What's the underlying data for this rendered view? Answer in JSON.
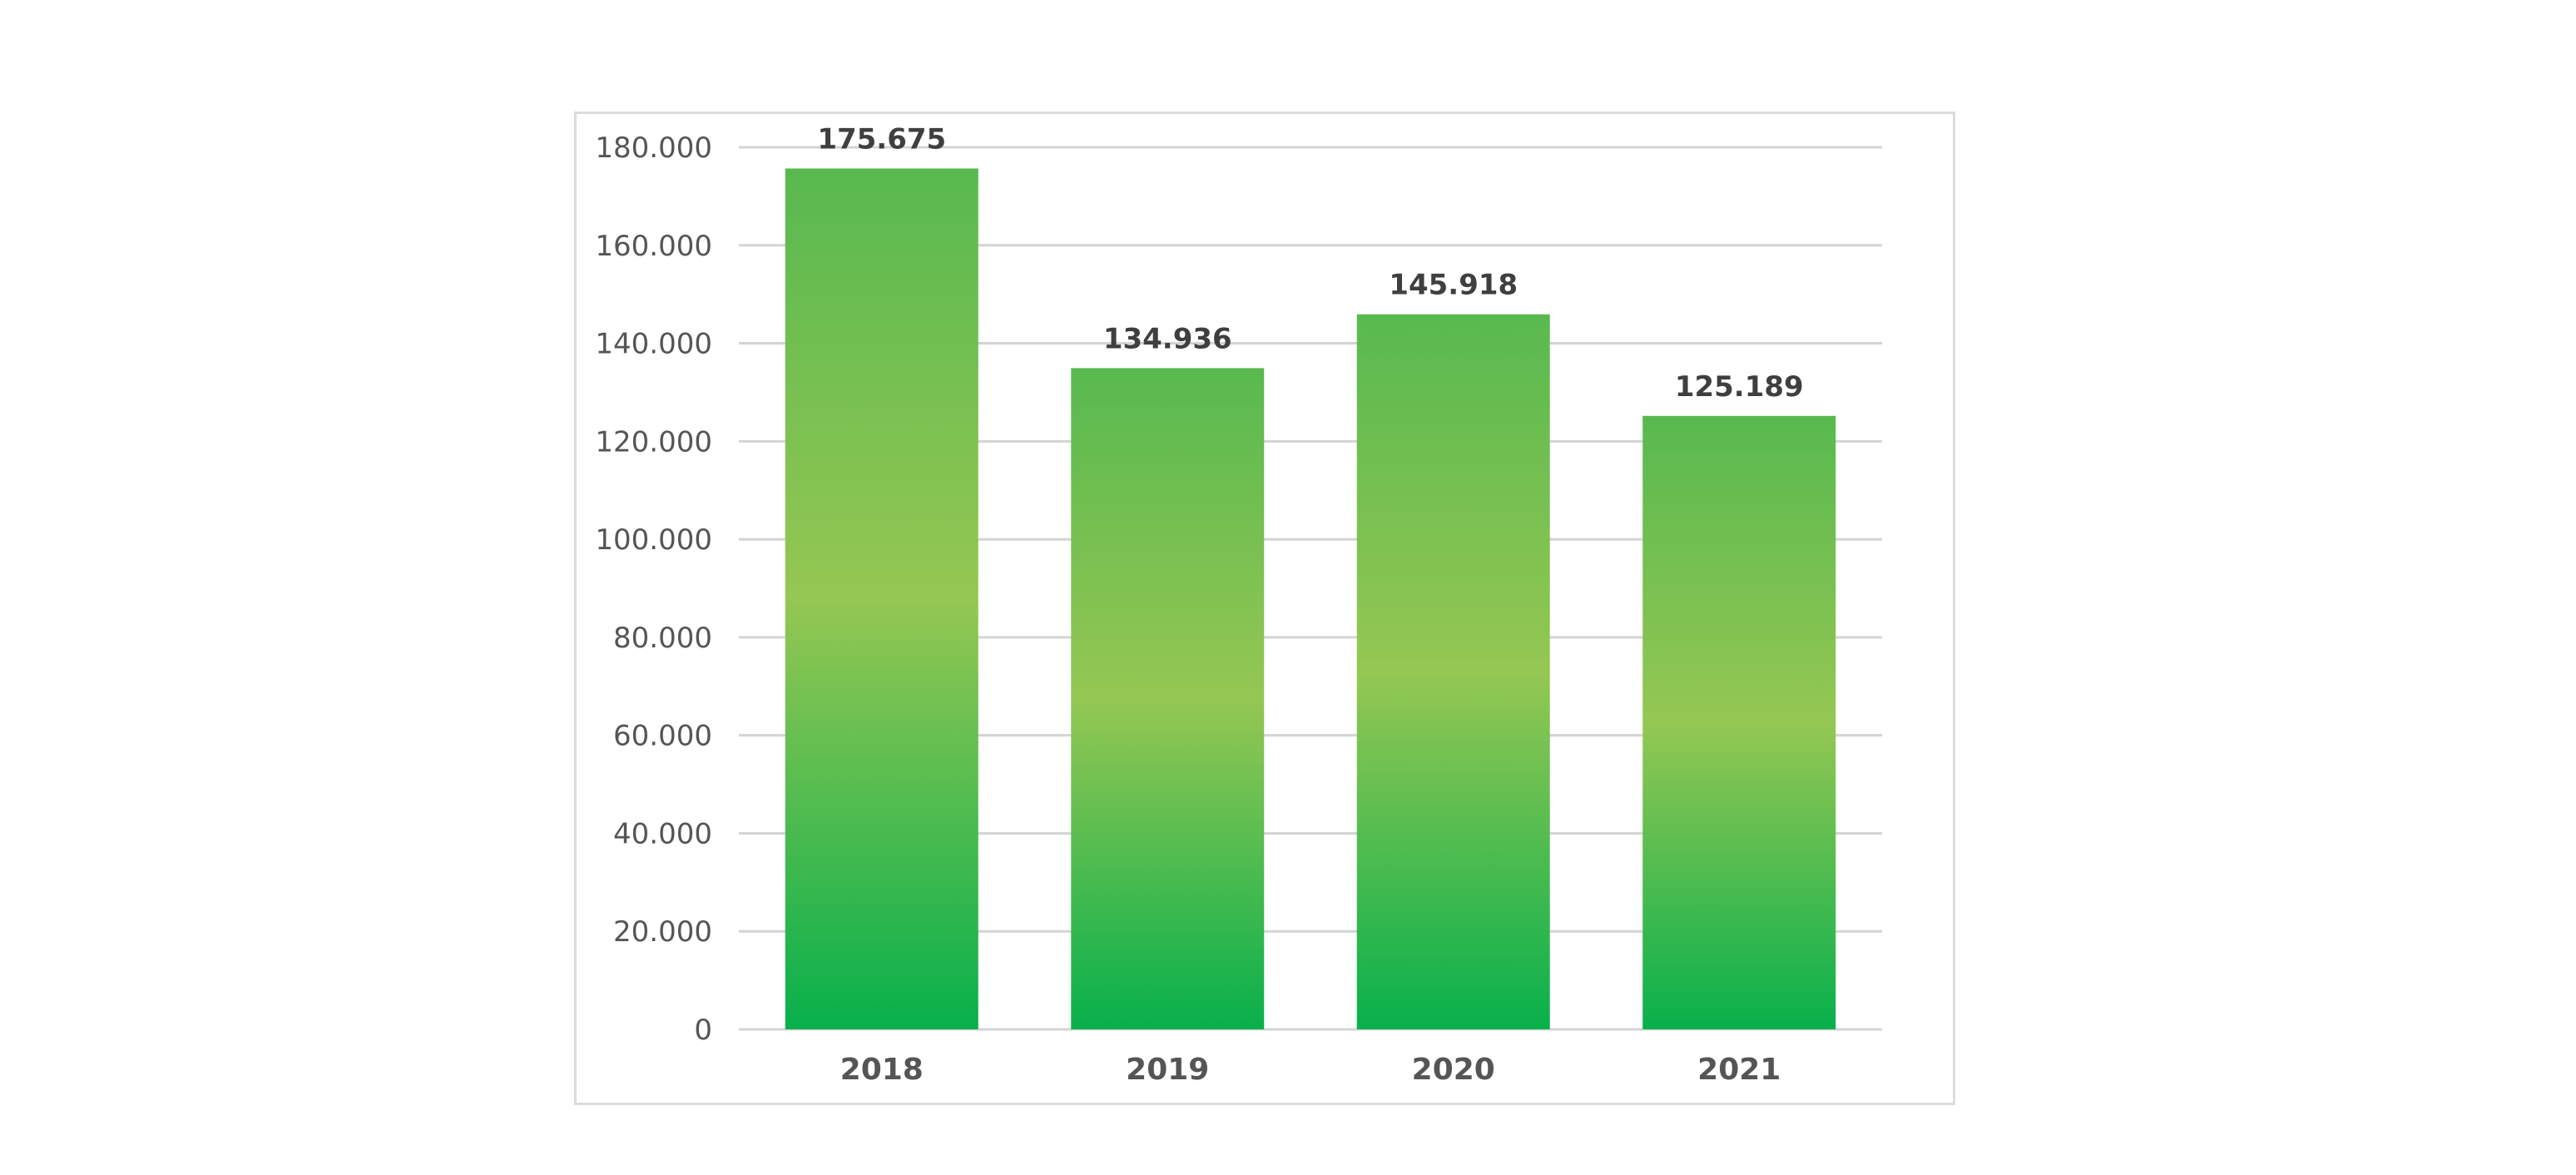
{
  "chart_data": {
    "type": "bar",
    "categories": [
      "2018",
      "2019",
      "2020",
      "2021"
    ],
    "values": [
      175675,
      134936,
      145918,
      125189
    ],
    "value_labels": [
      "175.675",
      "134.936",
      "145.918",
      "125.189"
    ],
    "y_ticks": [
      "0",
      "20.000",
      "40.000",
      "60.000",
      "80.000",
      "100.000",
      "120.000",
      "140.000",
      "160.000",
      "180.000"
    ],
    "ylim": [
      0,
      180000
    ],
    "grid": true,
    "legend": "none",
    "title": "",
    "xlabel": "",
    "ylabel": "",
    "colors": {
      "bar_top": "#58b94f",
      "bar_mid": "#95c753",
      "bar_bottom": "#08b04c",
      "grid": "#d4d4d4",
      "frame": "#dcdcdc"
    }
  }
}
